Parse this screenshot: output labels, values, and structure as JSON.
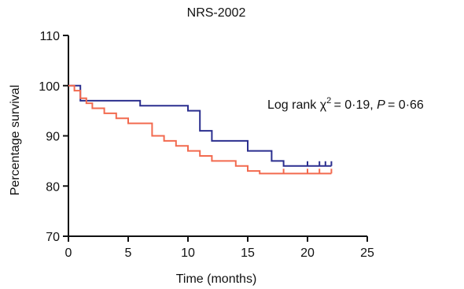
{
  "chart_data": {
    "type": "line",
    "title": "NRS-2002",
    "xlabel": "Time (months)",
    "ylabel": "Percentage survival",
    "xlim": [
      0,
      25
    ],
    "ylim": [
      70,
      110
    ],
    "x_ticks": [
      "0",
      "5",
      "10",
      "15",
      "20",
      "25"
    ],
    "y_ticks": [
      "70",
      "80",
      "90",
      "100",
      "110"
    ],
    "grid": false,
    "annotation": {
      "prefix": "Log rank χ",
      "superscript": "2",
      "middle": " = 0·19, ",
      "p_symbol": "P",
      "suffix": " = 0·66"
    },
    "series": [
      {
        "color": "#2b2f8f",
        "step": true,
        "x": [
          0,
          1,
          6,
          10,
          11,
          12,
          15,
          17,
          18,
          22
        ],
        "y": [
          100,
          97,
          96,
          95,
          91,
          89,
          87,
          85,
          84,
          84
        ],
        "censor_x": [
          20,
          21,
          21.5,
          22
        ]
      },
      {
        "color": "#f26a4f",
        "step": true,
        "x": [
          0,
          0.5,
          1,
          1.5,
          2,
          3,
          4,
          5,
          7,
          8,
          9,
          10,
          11,
          12,
          14,
          15,
          16,
          22
        ],
        "y": [
          100,
          99,
          97.5,
          96.5,
          95.5,
          94.5,
          93.5,
          92.5,
          90,
          89,
          88,
          87,
          86,
          85,
          84,
          83,
          82.5,
          82.5
        ],
        "censor_x": [
          18,
          20,
          21,
          22
        ]
      }
    ]
  }
}
